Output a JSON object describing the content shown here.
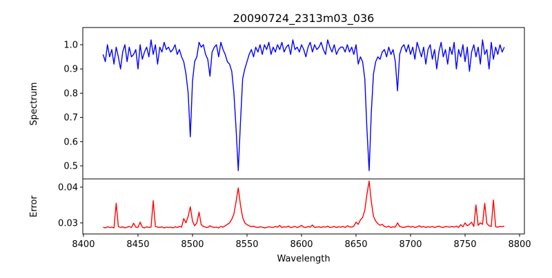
{
  "chart_data": [
    {
      "type": "line",
      "title": "20090724_2313m03_036",
      "xlabel": "",
      "ylabel": "Spectrum",
      "xlim": [
        8399.4,
        8804.4
      ],
      "ylim": [
        0.446,
        1.071
      ],
      "x_start": 8418,
      "x_step": 2,
      "yticks": [
        0.5,
        0.6,
        0.7,
        0.8,
        0.9,
        1.0
      ],
      "ytick_labels": [
        "0.5",
        "0.6",
        "0.7",
        "0.8",
        "0.9",
        "1.0"
      ],
      "color": "#0000ff",
      "grid": false,
      "values": [
        0.96,
        0.93,
        1.0,
        0.95,
        0.98,
        0.92,
        0.99,
        0.95,
        0.9,
        0.97,
        1.0,
        0.93,
        0.99,
        0.95,
        0.96,
        0.98,
        0.9,
        1.0,
        0.94,
        0.97,
        0.99,
        0.95,
        1.02,
        0.96,
        1.0,
        0.92,
        0.99,
        0.97,
        1.01,
        0.98,
        0.99,
        0.97,
        0.98,
        1.0,
        0.96,
        0.98,
        0.95,
        0.93,
        0.88,
        0.8,
        0.62,
        0.85,
        0.93,
        0.95,
        1.01,
        0.99,
        1.0,
        0.96,
        0.94,
        0.87,
        0.97,
        0.99,
        1.0,
        0.95,
        1.01,
        0.98,
        0.96,
        0.93,
        0.92,
        0.89,
        0.8,
        0.65,
        0.48,
        0.68,
        0.86,
        0.9,
        0.93,
        0.96,
        0.98,
        0.95,
        0.99,
        0.97,
        1.0,
        0.96,
        1.0,
        0.98,
        1.01,
        0.96,
        0.99,
        0.97,
        1.0,
        0.98,
        1.01,
        0.97,
        0.99,
        1.0,
        0.96,
        1.02,
        0.98,
        0.99,
        0.97,
        1.0,
        0.98,
        0.95,
        0.99,
        1.01,
        0.97,
        1.0,
        0.98,
        0.99,
        1.01,
        0.98,
        0.96,
        1.02,
        0.99,
        0.97,
        1.0,
        0.96,
        0.98,
        0.99,
        0.99,
        0.97,
        1.0,
        0.97,
        0.99,
        0.96,
        1.0,
        0.92,
        0.95,
        0.93,
        0.86,
        0.65,
        0.48,
        0.72,
        0.88,
        0.93,
        0.95,
        0.94,
        0.97,
        0.98,
        0.95,
        0.99,
        0.96,
        0.98,
        0.93,
        0.81,
        0.96,
        0.99,
        1.0,
        0.97,
        1.0,
        0.96,
        0.99,
        0.94,
        1.01,
        0.98,
        0.95,
        0.99,
        0.92,
        0.98,
        1.0,
        0.94,
        0.98,
        0.9,
        0.97,
        1.01,
        0.95,
        0.98,
        0.92,
        0.99,
        0.96,
        1.01,
        0.9,
        0.98,
        0.95,
        1.0,
        0.93,
        0.99,
        0.89,
        0.97,
        1.0,
        0.95,
        0.99,
        0.92,
        1.02,
        0.96,
        0.98,
        0.9,
        1.01,
        0.94,
        0.99,
        0.96,
        1.0,
        0.97,
        0.99
      ]
    },
    {
      "type": "line",
      "title": "",
      "xlabel": "Wavelength",
      "ylabel": "Error",
      "xlim": [
        8399.4,
        8804.4
      ],
      "ylim": [
        0.0269,
        0.0423
      ],
      "x_start": 8418,
      "x_step": 2,
      "xticks": [
        8400,
        8450,
        8500,
        8550,
        8600,
        8650,
        8700,
        8750,
        8800
      ],
      "xtick_labels": [
        "8400",
        "8450",
        "8500",
        "8550",
        "8600",
        "8650",
        "8700",
        "8750",
        "8800"
      ],
      "yticks": [
        0.03,
        0.04
      ],
      "ytick_labels": [
        "0.03",
        "0.04"
      ],
      "color": "#ff0000",
      "grid": false,
      "values": [
        0.0288,
        0.0286,
        0.0289,
        0.0287,
        0.0288,
        0.0286,
        0.0355,
        0.029,
        0.0287,
        0.0289,
        0.0286,
        0.0288,
        0.029,
        0.0287,
        0.0299,
        0.0288,
        0.0287,
        0.0302,
        0.0288,
        0.0286,
        0.0289,
        0.0287,
        0.0288,
        0.0362,
        0.029,
        0.0288,
        0.0287,
        0.0289,
        0.0286,
        0.0288,
        0.0287,
        0.0288,
        0.0286,
        0.0289,
        0.0287,
        0.029,
        0.0288,
        0.0312,
        0.03,
        0.0318,
        0.0345,
        0.0305,
        0.0292,
        0.03,
        0.033,
        0.0295,
        0.029,
        0.0288,
        0.0287,
        0.0292,
        0.0289,
        0.0287,
        0.0288,
        0.0286,
        0.029,
        0.0288,
        0.0292,
        0.0296,
        0.03,
        0.031,
        0.0325,
        0.036,
        0.0398,
        0.035,
        0.0315,
        0.03,
        0.0295,
        0.0292,
        0.0289,
        0.0291,
        0.0288,
        0.0287,
        0.0289,
        0.0288,
        0.0286,
        0.0287,
        0.0289,
        0.0288,
        0.0287,
        0.029,
        0.0288,
        0.0293,
        0.0287,
        0.0289,
        0.0288,
        0.0291,
        0.0287,
        0.0288,
        0.029,
        0.0287,
        0.0289,
        0.0293,
        0.0288,
        0.0287,
        0.029,
        0.0288,
        0.0294,
        0.0287,
        0.0288,
        0.0289,
        0.0287,
        0.0289,
        0.0288,
        0.0291,
        0.0287,
        0.0288,
        0.029,
        0.0287,
        0.0289,
        0.0288,
        0.029,
        0.0287,
        0.0292,
        0.0289,
        0.0288,
        0.0291,
        0.0302,
        0.0296,
        0.0308,
        0.0315,
        0.0335,
        0.038,
        0.0417,
        0.036,
        0.0318,
        0.0305,
        0.0298,
        0.0293,
        0.0296,
        0.029,
        0.0288,
        0.0291,
        0.0287,
        0.0289,
        0.0288,
        0.03,
        0.029,
        0.0288,
        0.0287,
        0.0289,
        0.0291,
        0.0288,
        0.029,
        0.0287,
        0.0289,
        0.0292,
        0.0288,
        0.029,
        0.0287,
        0.0289,
        0.0288,
        0.029,
        0.0287,
        0.0289,
        0.0291,
        0.0288,
        0.0287,
        0.029,
        0.0289,
        0.0288,
        0.029,
        0.0288,
        0.0291,
        0.0287,
        0.0295,
        0.0289,
        0.03,
        0.0292,
        0.0296,
        0.0302,
        0.029,
        0.035,
        0.0293,
        0.03,
        0.0296,
        0.0355,
        0.0298,
        0.0292,
        0.029,
        0.0364,
        0.0289,
        0.0288,
        0.029,
        0.0289,
        0.0291
      ]
    }
  ]
}
